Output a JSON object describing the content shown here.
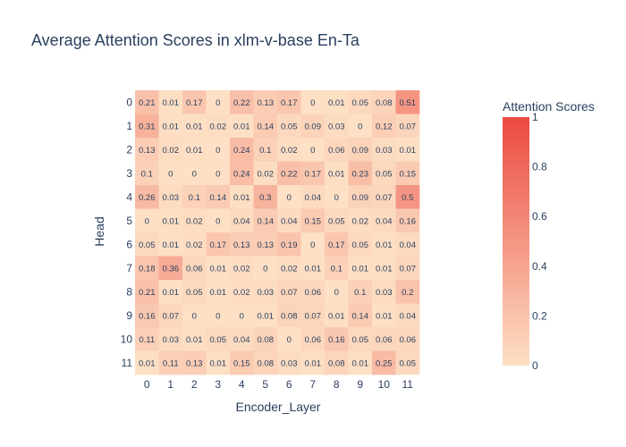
{
  "chart_data": {
    "type": "heatmap",
    "title": "Average Attention Scores in xlm-v-base En-Ta",
    "xlabel": "Encoder_Layer",
    "ylabel": "Head",
    "x": [
      "0",
      "1",
      "2",
      "3",
      "4",
      "5",
      "6",
      "7",
      "8",
      "9",
      "10",
      "11"
    ],
    "y": [
      "0",
      "1",
      "2",
      "3",
      "4",
      "5",
      "6",
      "7",
      "8",
      "9",
      "10",
      "11"
    ],
    "z": [
      [
        0.21,
        0.01,
        0.17,
        0,
        0.22,
        0.13,
        0.17,
        0,
        0.01,
        0.05,
        0.08,
        0.51
      ],
      [
        0.31,
        0.01,
        0.01,
        0.02,
        0.01,
        0.14,
        0.05,
        0.09,
        0.03,
        0,
        0.12,
        0.07
      ],
      [
        0.13,
        0.02,
        0.01,
        0,
        0.24,
        0.1,
        0.02,
        0,
        0.06,
        0.09,
        0.03,
        0.01
      ],
      [
        0.1,
        0,
        0,
        0,
        0.24,
        0.02,
        0.22,
        0.17,
        0.01,
        0.23,
        0.05,
        0.15
      ],
      [
        0.26,
        0.03,
        0.1,
        0.14,
        0.01,
        0.3,
        0,
        0.04,
        0,
        0.09,
        0.07,
        0.5
      ],
      [
        0,
        0.01,
        0.02,
        0,
        0.04,
        0.14,
        0.04,
        0.15,
        0.05,
        0.02,
        0.04,
        0.16
      ],
      [
        0.05,
        0.01,
        0.02,
        0.17,
        0.13,
        0.13,
        0.19,
        0,
        0.17,
        0.05,
        0.01,
        0.04
      ],
      [
        0.18,
        0.36,
        0.06,
        0.01,
        0.02,
        0,
        0.02,
        0.01,
        0.1,
        0.01,
        0.01,
        0.07
      ],
      [
        0.21,
        0.01,
        0.05,
        0.01,
        0.02,
        0.03,
        0.07,
        0.06,
        0,
        0.1,
        0.03,
        0.2
      ],
      [
        0.16,
        0.07,
        0,
        0,
        0,
        0.01,
        0.08,
        0.07,
        0.01,
        0.14,
        0.01,
        0.04
      ],
      [
        0.11,
        0.03,
        0.01,
        0.05,
        0.04,
        0.08,
        0,
        0.06,
        0.16,
        0.05,
        0.06,
        0.06
      ],
      [
        0.01,
        0.11,
        0.13,
        0.01,
        0.15,
        0.08,
        0.03,
        0.01,
        0.08,
        0.01,
        0.25,
        0.05
      ]
    ],
    "zmin": 0,
    "zmax": 1,
    "colorscale": [
      "#fde0c5",
      "#eb4a40"
    ],
    "colorbar": {
      "title": "Attention Scores",
      "ticks": [
        "0",
        "0.2",
        "0.4",
        "0.6",
        "0.8",
        "1"
      ]
    }
  }
}
